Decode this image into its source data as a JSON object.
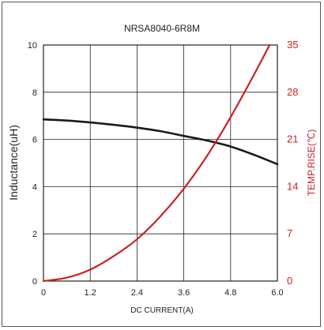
{
  "chart_data": {
    "type": "line",
    "title": "NRSA8040-6R8M",
    "xlabel": "DC CURRENT(A)",
    "ylabel_left": "Inductance(uH)",
    "ylabel_right": "TEMP.RISE(℃)",
    "xlim": [
      0,
      6.0
    ],
    "ylim_left": [
      0,
      10
    ],
    "ylim_right": [
      0,
      35
    ],
    "x_ticks": [
      "0",
      "1.2",
      "2.4",
      "3.6",
      "4.8",
      "6.0"
    ],
    "y_left_ticks": [
      "0",
      "2",
      "4",
      "6",
      "8",
      "10"
    ],
    "y_right_ticks": [
      "0",
      "7",
      "14",
      "21",
      "28",
      "35"
    ],
    "grid": true,
    "colors": {
      "inductance": "#1a1a1a",
      "temp_rise": "#cc2222",
      "grid": "#222222",
      "right_axis_text": "#cc2222"
    },
    "series": [
      {
        "axis": "left",
        "x": [
          0,
          0.6,
          1.2,
          1.8,
          2.4,
          3.0,
          3.6,
          4.2,
          4.8,
          5.4,
          6.0
        ],
        "values": [
          6.85,
          6.8,
          6.72,
          6.62,
          6.5,
          6.35,
          6.15,
          5.95,
          5.7,
          5.35,
          4.95
        ]
      },
      {
        "axis": "right",
        "x": [
          0,
          0.6,
          1.2,
          1.8,
          2.4,
          3.0,
          3.6,
          4.2,
          4.8,
          5.4,
          5.8
        ],
        "values": [
          0,
          0.5,
          1.7,
          3.7,
          6.2,
          9.6,
          13.7,
          18.6,
          24.3,
          30.6,
          35
        ]
      }
    ]
  }
}
